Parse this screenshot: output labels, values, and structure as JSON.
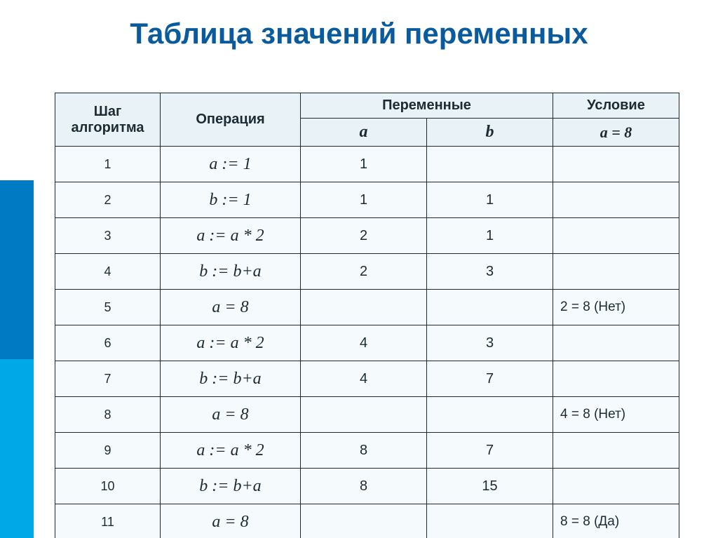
{
  "title": "Таблица значений переменных",
  "colors": {
    "title": "#0a5a9e",
    "header_bg": "#e9f3f7",
    "cell_bg": "#f5fbfd",
    "border": "#1b2a33",
    "sidebar_dark": "#007ac2",
    "sidebar_light": "#00a8e8"
  },
  "table": {
    "columns": {
      "step": "Шаг алгоритма",
      "operation": "Операция",
      "variables": "Переменные",
      "condition": "Условие",
      "var_a": "a",
      "var_b": "b",
      "cond_sub": "a = 8"
    },
    "rows": [
      {
        "step": "1",
        "op": "a := 1",
        "a": "1",
        "b": "",
        "cond": ""
      },
      {
        "step": "2",
        "op": "b := 1",
        "a": "1",
        "b": "1",
        "cond": ""
      },
      {
        "step": "3",
        "op": "a := a * 2",
        "a": "2",
        "b": "1",
        "cond": ""
      },
      {
        "step": "4",
        "op": "b := b+a",
        "a": "2",
        "b": "3",
        "cond": ""
      },
      {
        "step": "5",
        "op": "a = 8",
        "a": "",
        "b": "",
        "cond": "2 = 8 (Нет)"
      },
      {
        "step": "6",
        "op": "a := a * 2",
        "a": "4",
        "b": "3",
        "cond": ""
      },
      {
        "step": "7",
        "op": "b := b+a",
        "a": "4",
        "b": "7",
        "cond": ""
      },
      {
        "step": "8",
        "op": "a = 8",
        "a": "",
        "b": "",
        "cond": "4 = 8 (Нет)"
      },
      {
        "step": "9",
        "op": "a := a * 2",
        "a": "8",
        "b": "7",
        "cond": ""
      },
      {
        "step": "10",
        "op": "b := b+a",
        "a": "8",
        "b": "15",
        "cond": ""
      },
      {
        "step": "11",
        "op": "a = 8",
        "a": "",
        "b": "",
        "cond": "8 = 8 (Да)"
      }
    ]
  }
}
